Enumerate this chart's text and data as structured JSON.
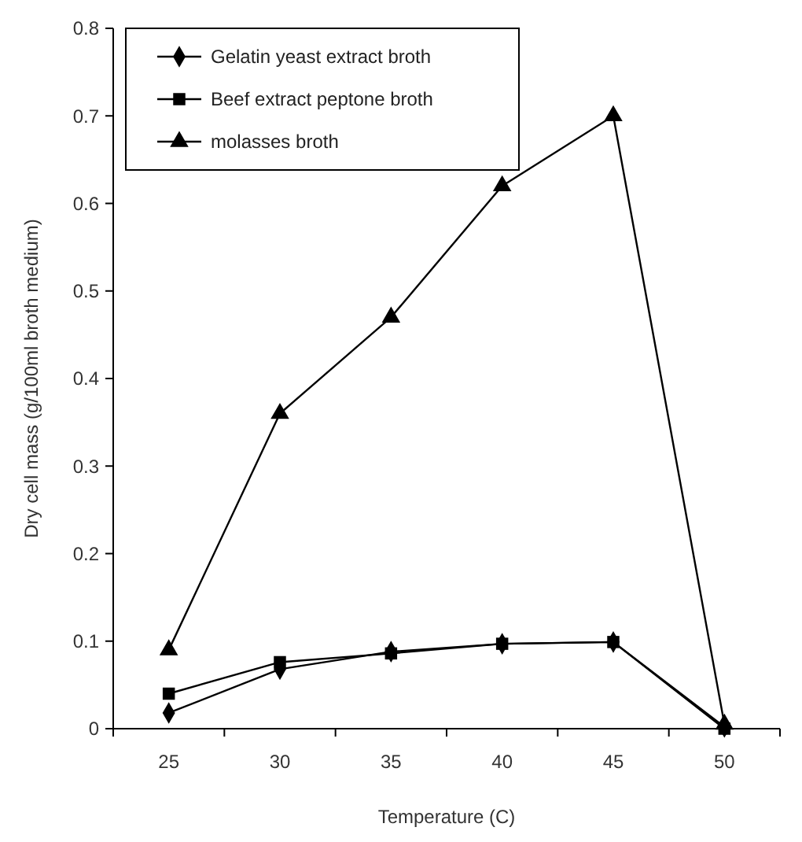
{
  "chart_data": {
    "type": "line",
    "xlabel": "Temperature (C)",
    "ylabel": "Dry cell mass  (g/100ml  broth  medium)",
    "categories": [
      "25",
      "30",
      "35",
      "40",
      "45",
      "50"
    ],
    "ylim": [
      0,
      0.8
    ],
    "yticks": [
      0,
      0.1,
      0.2,
      0.3,
      0.4,
      0.5,
      0.6,
      0.7,
      0.8
    ],
    "legend": "top left",
    "grid": false,
    "series": [
      {
        "name": "Gelatin yeast extract broth",
        "color": "#000000",
        "marker": "diamond",
        "values": [
          0.018,
          0.068,
          0.088,
          0.097,
          0.099,
          0.002
        ]
      },
      {
        "name": "Beef extract peptone broth",
        "color": "#000000",
        "marker": "square",
        "values": [
          0.04,
          0.076,
          0.086,
          0.097,
          0.099,
          0
        ]
      },
      {
        "name": "molasses broth",
        "color": "#000000",
        "marker": "triangle",
        "values": [
          0.09,
          0.36,
          0.47,
          0.62,
          0.7,
          0.005
        ]
      }
    ]
  }
}
